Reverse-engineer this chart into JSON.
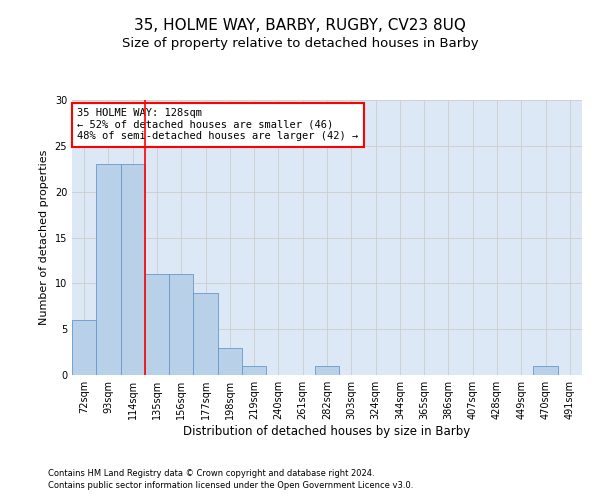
{
  "title": "35, HOLME WAY, BARBY, RUGBY, CV23 8UQ",
  "subtitle": "Size of property relative to detached houses in Barby",
  "xlabel": "Distribution of detached houses by size in Barby",
  "ylabel": "Number of detached properties",
  "categories": [
    "72sqm",
    "93sqm",
    "114sqm",
    "135sqm",
    "156sqm",
    "177sqm",
    "198sqm",
    "219sqm",
    "240sqm",
    "261sqm",
    "282sqm",
    "303sqm",
    "324sqm",
    "344sqm",
    "365sqm",
    "386sqm",
    "407sqm",
    "428sqm",
    "449sqm",
    "470sqm",
    "491sqm"
  ],
  "values": [
    6,
    23,
    23,
    11,
    11,
    9,
    3,
    1,
    0,
    0,
    1,
    0,
    0,
    0,
    0,
    0,
    0,
    0,
    0,
    1,
    0
  ],
  "bar_color": "#b8d0e8",
  "bar_edge_color": "#6699cc",
  "grid_color": "#cccccc",
  "vline_color": "red",
  "vline_x": 2.5,
  "annotation_text": "35 HOLME WAY: 128sqm\n← 52% of detached houses are smaller (46)\n48% of semi-detached houses are larger (42) →",
  "annotation_box_color": "white",
  "annotation_box_edge_color": "red",
  "ylim": [
    0,
    30
  ],
  "yticks": [
    0,
    5,
    10,
    15,
    20,
    25,
    30
  ],
  "footnote1": "Contains HM Land Registry data © Crown copyright and database right 2024.",
  "footnote2": "Contains public sector information licensed under the Open Government Licence v3.0.",
  "bg_color": "#dce8f5",
  "title_fontsize": 11,
  "subtitle_fontsize": 9.5,
  "xlabel_fontsize": 8.5,
  "ylabel_fontsize": 8,
  "tick_fontsize": 7,
  "annotation_fontsize": 7.5,
  "footnote_fontsize": 6
}
